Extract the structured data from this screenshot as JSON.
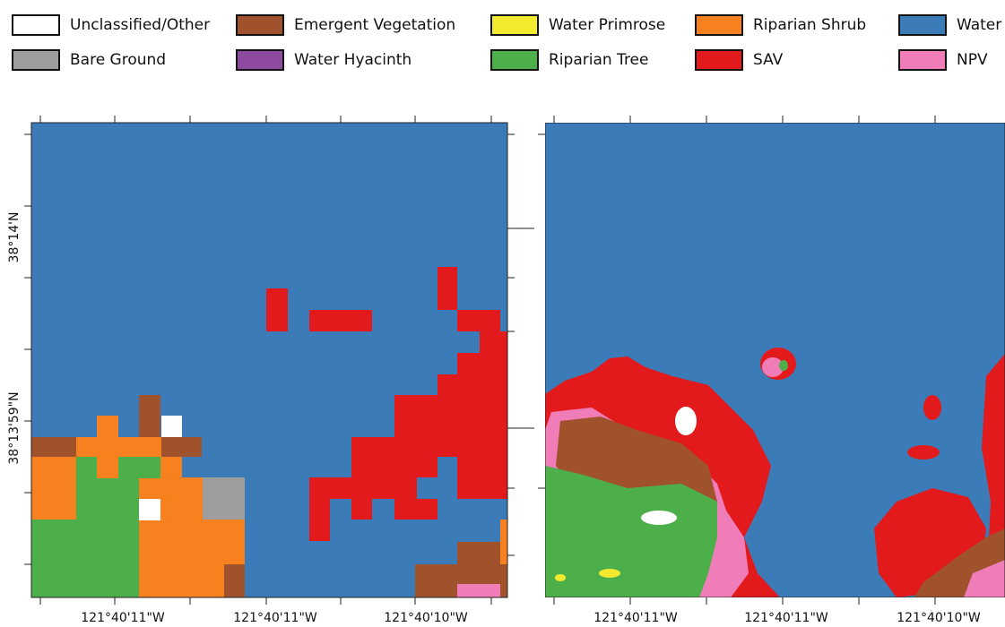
{
  "legend": {
    "items": [
      {
        "label": "Unclassified/Other",
        "color": "#ffffff"
      },
      {
        "label": "Emergent Vegetation",
        "color": "#a0522d"
      },
      {
        "label": "Water Primrose",
        "color": "#f2ea2e"
      },
      {
        "label": "Riparian Shrub",
        "color": "#f7801f"
      },
      {
        "label": "Water",
        "color": "#3a7bb8"
      },
      {
        "label": "Bare Ground",
        "color": "#9e9e9e"
      },
      {
        "label": "Water Hyacinth",
        "color": "#8e4a9e"
      },
      {
        "label": "Riparian Tree",
        "color": "#4daf4a"
      },
      {
        "label": "SAV",
        "color": "#e31a1c"
      },
      {
        "label": "NPV",
        "color": "#f07cb8"
      }
    ]
  },
  "panels": [
    {
      "x_labels": [
        "121°40'11\"W",
        "121°40'11\"W",
        "121°40'10\"W"
      ],
      "y_labels": [
        "38°14'N",
        "38°13'59\"N"
      ]
    },
    {
      "x_labels": [
        "121°40'11\"W",
        "121°40'11\"W",
        "121°40'10\"W"
      ]
    }
  ]
}
